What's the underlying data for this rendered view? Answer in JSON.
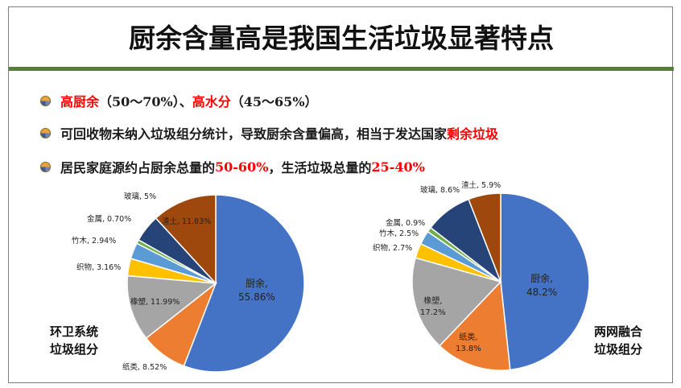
{
  "title": "厨余含量高是我国生活垃圾显著特点",
  "bullets": [
    {
      "parts": [
        {
          "text": "高厨余",
          "red": true
        },
        {
          "text": "（50～70%）、",
          "red": false
        },
        {
          "text": "高水分",
          "red": true
        },
        {
          "text": "（45～65%）",
          "red": false
        }
      ]
    },
    {
      "parts": [
        {
          "text": "可回收物未纳入垃圾组分统计，导致厨余含量偏高，相当于发达国家",
          "red": false
        },
        {
          "text": "剩余垃圾",
          "red": true
        }
      ]
    },
    {
      "parts": [
        {
          "text": "居民家庭源约占厨余总量的",
          "red": false
        },
        {
          "text": "50-60%",
          "red": true
        },
        {
          "text": "，生活垃圾总量的",
          "red": false
        },
        {
          "text": "25-40%",
          "red": true
        }
      ]
    }
  ],
  "colors": {
    "厨余": "#4472c4",
    "纸类": "#ed7d31",
    "橡塑": "#a5a5a5",
    "织物": "#ffc000",
    "竹木": "#5b9bd5",
    "金属": "#70ad47",
    "玻璃": "#264478",
    "渣土": "#9e480e"
  },
  "chart_data": [
    {
      "type": "pie",
      "caption": [
        "环卫系统",
        "垃圾组分"
      ],
      "slices": [
        {
          "name": "厨余",
          "value": 55.86,
          "label": "厨余,",
          "value_label": "55.86%"
        },
        {
          "name": "纸类",
          "value": 8.52,
          "label": "纸类, 8.52%"
        },
        {
          "name": "橡塑",
          "value": 11.99,
          "label": "橡塑, 11.99%"
        },
        {
          "name": "织物",
          "value": 3.16,
          "label": "织物, 3.16%"
        },
        {
          "name": "竹木",
          "value": 2.94,
          "label": "竹木, 2.94%"
        },
        {
          "name": "金属",
          "value": 0.7,
          "label": "金属, 0.70%"
        },
        {
          "name": "玻璃",
          "value": 5,
          "label": "玻璃, 5%"
        },
        {
          "name": "渣土",
          "value": 11.83,
          "label": "渣土, 11.83%"
        }
      ]
    },
    {
      "type": "pie",
      "caption": [
        "两网融合",
        "垃圾组分"
      ],
      "slices": [
        {
          "name": "厨余",
          "value": 48.2,
          "label": "厨余,",
          "value_label": "48.2%"
        },
        {
          "name": "纸类",
          "value": 13.8,
          "label": "纸类,",
          "value_label": "13.8%"
        },
        {
          "name": "橡塑",
          "value": 17.2,
          "label": "橡塑,",
          "value_label": "17.2%"
        },
        {
          "name": "织物",
          "value": 2.7,
          "label": "织物, 2.7%"
        },
        {
          "name": "竹木",
          "value": 2.5,
          "label": "竹木, 2.5%"
        },
        {
          "name": "金属",
          "value": 0.9,
          "label": "金属, 0.9%"
        },
        {
          "name": "玻璃",
          "value": 8.6,
          "label": "玻璃, 8.6%"
        },
        {
          "name": "渣土",
          "value": 5.9,
          "label": "渣土, 5.9%"
        }
      ]
    }
  ]
}
